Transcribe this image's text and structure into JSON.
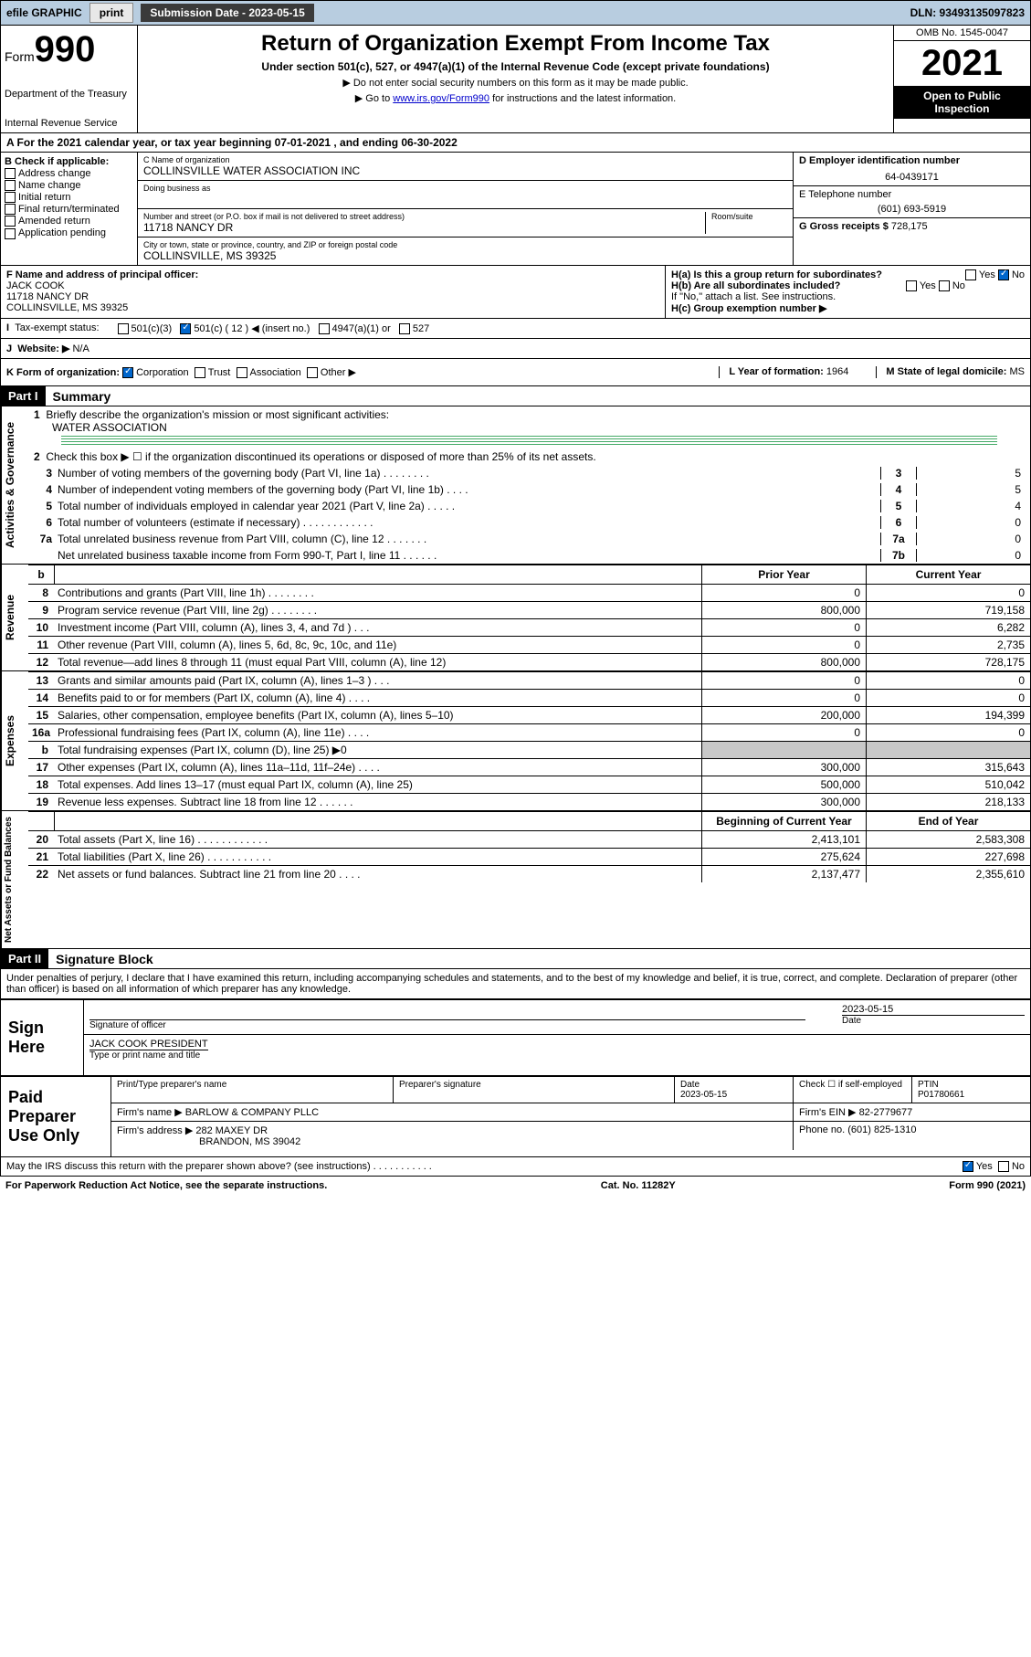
{
  "topbar": {
    "efile_label": "efile GRAPHIC",
    "print_label": "print",
    "submission_label": "Submission Date - 2023-05-15",
    "dln": "DLN: 93493135097823"
  },
  "header": {
    "form_label": "Form",
    "form_no": "990",
    "dept": "Department of the Treasury",
    "irs": "Internal Revenue Service",
    "title": "Return of Organization Exempt From Income Tax",
    "sub": "Under section 501(c), 527, or 4947(a)(1) of the Internal Revenue Code (except private foundations)",
    "note1": "▶ Do not enter social security numbers on this form as it may be made public.",
    "note2_pre": "▶ Go to ",
    "note2_link": "www.irs.gov/Form990",
    "note2_post": " for instructions and the latest information.",
    "omb": "OMB No. 1545-0047",
    "year": "2021",
    "open": "Open to Public Inspection"
  },
  "row_a": {
    "text": "A For the 2021 calendar year, or tax year beginning 07-01-2021   , and ending 06-30-2022"
  },
  "col_b": {
    "title": "B Check if applicable:",
    "items": [
      "Address change",
      "Name change",
      "Initial return",
      "Final return/terminated",
      "Amended return",
      "Application pending"
    ]
  },
  "col_c": {
    "name_label": "C Name of organization",
    "name": "COLLINSVILLE WATER ASSOCIATION INC",
    "dba_label": "Doing business as",
    "addr_label": "Number and street (or P.O. box if mail is not delivered to street address)",
    "room_label": "Room/suite",
    "addr": "11718 NANCY DR",
    "city_label": "City or town, state or province, country, and ZIP or foreign postal code",
    "city": "COLLINSVILLE, MS  39325"
  },
  "col_d": {
    "ein_label": "D Employer identification number",
    "ein": "64-0439171",
    "phone_label": "E Telephone number",
    "phone": "(601) 693-5919",
    "gross_label": "G Gross receipts $",
    "gross": "728,175"
  },
  "col_f": {
    "label": "F  Name and address of principal officer:",
    "name": "JACK COOK",
    "addr": "11718 NANCY DR",
    "city": "COLLINSVILLE, MS  39325"
  },
  "col_h": {
    "ha": "H(a)  Is this a group return for subordinates?",
    "hb": "H(b)  Are all subordinates included?",
    "hb_note": "If \"No,\" attach a list. See instructions.",
    "hc": "H(c)  Group exemption number ▶",
    "yes": "Yes",
    "no": "No"
  },
  "row_i": {
    "label": "Tax-exempt status:",
    "opts": [
      "501(c)(3)",
      "501(c) ( 12 ) ◀ (insert no.)",
      "4947(a)(1) or",
      "527"
    ],
    "checked_idx": 1
  },
  "row_j": {
    "label": "Website: ▶",
    "val": "N/A"
  },
  "row_k": {
    "label": "K Form of organization:",
    "opts": [
      "Corporation",
      "Trust",
      "Association",
      "Other ▶"
    ],
    "checked_idx": 0,
    "year_label": "L Year of formation:",
    "year": "1964",
    "state_label": "M State of legal domicile:",
    "state": "MS"
  },
  "part1": {
    "hdr": "Part I",
    "title": "Summary",
    "vlabel_gov": "Activities & Governance",
    "vlabel_rev": "Revenue",
    "vlabel_exp": "Expenses",
    "vlabel_net": "Net Assets or Fund Balances",
    "q1": "Briefly describe the organization's mission or most significant activities:",
    "mission": "WATER ASSOCIATION",
    "q2": "Check this box ▶ ☐  if the organization discontinued its operations or disposed of more than 25% of its net assets.",
    "lines_gov": [
      {
        "n": "3",
        "t": "Number of voting members of the governing body (Part VI, line 1a)  .   .   .   .   .   .   .   .",
        "box": "3",
        "v": "5"
      },
      {
        "n": "4",
        "t": "Number of independent voting members of the governing body (Part VI, line 1b)   .   .   .   .",
        "box": "4",
        "v": "5"
      },
      {
        "n": "5",
        "t": "Total number of individuals employed in calendar year 2021 (Part V, line 2a)   .   .   .   .   .",
        "box": "5",
        "v": "4"
      },
      {
        "n": "6",
        "t": "Total number of volunteers (estimate if necessary)   .   .   .   .   .   .   .   .   .   .   .   .",
        "box": "6",
        "v": "0"
      },
      {
        "n": "7a",
        "t": "Total unrelated business revenue from Part VIII, column (C), line 12   .   .   .   .   .   .   .",
        "box": "7a",
        "v": "0"
      },
      {
        "n": "",
        "t": "Net unrelated business taxable income from Form 990-T, Part I, line 11   .   .   .   .   .   .",
        "box": "7b",
        "v": "0"
      }
    ],
    "col_hdr_prior": "Prior Year",
    "col_hdr_curr": "Current Year",
    "lines_rev": [
      {
        "n": "8",
        "t": "Contributions and grants (Part VIII, line 1h)   .   .   .   .   .   .   .   .",
        "py": "0",
        "cy": "0"
      },
      {
        "n": "9",
        "t": "Program service revenue (Part VIII, line 2g)   .   .   .   .   .   .   .   .",
        "py": "800,000",
        "cy": "719,158"
      },
      {
        "n": "10",
        "t": "Investment income (Part VIII, column (A), lines 3, 4, and 7d )   .   .   .",
        "py": "0",
        "cy": "6,282"
      },
      {
        "n": "11",
        "t": "Other revenue (Part VIII, column (A), lines 5, 6d, 8c, 9c, 10c, and 11e)",
        "py": "0",
        "cy": "2,735"
      },
      {
        "n": "12",
        "t": "Total revenue—add lines 8 through 11 (must equal Part VIII, column (A), line 12)",
        "py": "800,000",
        "cy": "728,175"
      }
    ],
    "lines_exp": [
      {
        "n": "13",
        "t": "Grants and similar amounts paid (Part IX, column (A), lines 1–3 )   .   .   .",
        "py": "0",
        "cy": "0"
      },
      {
        "n": "14",
        "t": "Benefits paid to or for members (Part IX, column (A), line 4)   .   .   .   .",
        "py": "0",
        "cy": "0"
      },
      {
        "n": "15",
        "t": "Salaries, other compensation, employee benefits (Part IX, column (A), lines 5–10)",
        "py": "200,000",
        "cy": "194,399"
      },
      {
        "n": "16a",
        "t": "Professional fundraising fees (Part IX, column (A), line 11e)   .   .   .   .",
        "py": "0",
        "cy": "0"
      },
      {
        "n": "b",
        "t": "Total fundraising expenses (Part IX, column (D), line 25) ▶0",
        "py": "grey",
        "cy": "grey"
      },
      {
        "n": "17",
        "t": "Other expenses (Part IX, column (A), lines 11a–11d, 11f–24e)   .   .   .   .",
        "py": "300,000",
        "cy": "315,643"
      },
      {
        "n": "18",
        "t": "Total expenses. Add lines 13–17 (must equal Part IX, column (A), line 25)",
        "py": "500,000",
        "cy": "510,042"
      },
      {
        "n": "19",
        "t": "Revenue less expenses. Subtract line 18 from line 12   .   .   .   .   .   .",
        "py": "300,000",
        "cy": "218,133"
      }
    ],
    "col_hdr_begin": "Beginning of Current Year",
    "col_hdr_end": "End of Year",
    "lines_net": [
      {
        "n": "20",
        "t": "Total assets (Part X, line 16)   .   .   .   .   .   .   .   .   .   .   .   .",
        "py": "2,413,101",
        "cy": "2,583,308"
      },
      {
        "n": "21",
        "t": "Total liabilities (Part X, line 26)   .   .   .   .   .   .   .   .   .   .   .",
        "py": "275,624",
        "cy": "227,698"
      },
      {
        "n": "22",
        "t": "Net assets or fund balances. Subtract line 21 from line 20   .   .   .   .",
        "py": "2,137,477",
        "cy": "2,355,610"
      }
    ]
  },
  "part2": {
    "hdr": "Part II",
    "title": "Signature Block",
    "decl": "Under penalties of perjury, I declare that I have examined this return, including accompanying schedules and statements, and to the best of my knowledge and belief, it is true, correct, and complete. Declaration of preparer (other than officer) is based on all information of which preparer has any knowledge.",
    "sign_here": "Sign Here",
    "sig_of_officer": "Signature of officer",
    "date_label": "Date",
    "sig_date": "2023-05-15",
    "officer_name": "JACK COOK  PRESIDENT",
    "type_name": "Type or print name and title",
    "paid": "Paid Preparer Use Only",
    "prep_name_label": "Print/Type preparer's name",
    "prep_sig_label": "Preparer's signature",
    "prep_date_label": "Date",
    "prep_date": "2023-05-15",
    "check_self": "Check ☐ if self-employed",
    "ptin_label": "PTIN",
    "ptin": "P01780661",
    "firm_name_label": "Firm's name    ▶",
    "firm_name": "BARLOW & COMPANY PLLC",
    "firm_ein_label": "Firm's EIN ▶",
    "firm_ein": "82-2779677",
    "firm_addr_label": "Firm's address ▶",
    "firm_addr": "282 MAXEY DR",
    "firm_city": "BRANDON, MS  39042",
    "firm_phone_label": "Phone no.",
    "firm_phone": "(601) 825-1310",
    "discuss": "May the IRS discuss this return with the preparer shown above? (see instructions)   .   .   .   .   .   .   .   .   .   .   .",
    "yes": "Yes",
    "no": "No"
  },
  "footer": {
    "left": "For Paperwork Reduction Act Notice, see the separate instructions.",
    "mid": "Cat. No. 11282Y",
    "right": "Form 990 (2021)"
  }
}
